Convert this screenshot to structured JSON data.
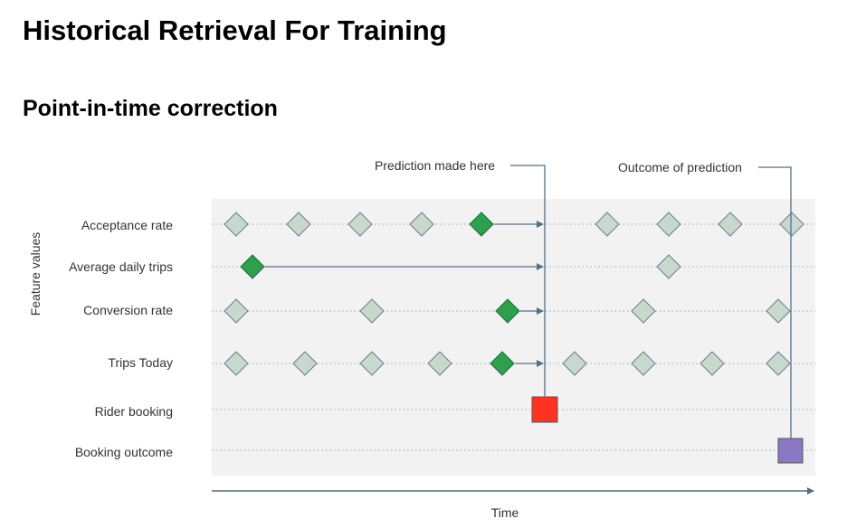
{
  "title": "Historical Retrieval For Training",
  "subtitle": "Point-in-time correction",
  "diagram": {
    "y_axis_label": "Feature values",
    "x_axis_label": "Time",
    "prediction_label": "Prediction made here",
    "outcome_label": "Outcome of prediction",
    "rows": [
      "Acceptance rate",
      "Average daily trips",
      "Conversion rate",
      "Trips Today",
      "Rider booking",
      "Booking outcome"
    ],
    "colors": {
      "panel": "#f2f2f2",
      "diamond_fill": "#c8d8cc",
      "diamond_stroke": "#6a7f8c",
      "diamond_highlight": "#2e9e4f",
      "rider_booking": "#ff3322",
      "booking_outcome": "#8b78c4",
      "line": "#556f85"
    }
  }
}
